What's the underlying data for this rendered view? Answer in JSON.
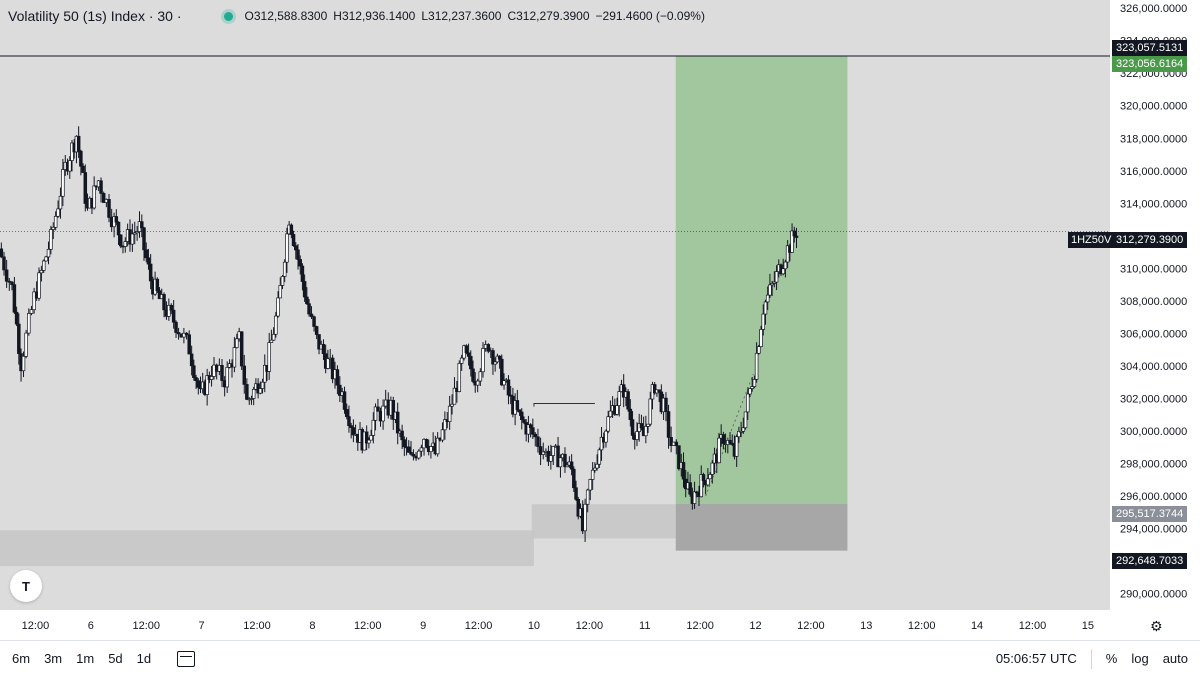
{
  "legend": {
    "title": "Volatility 50 (1s) Index · 30 ·",
    "open": "O312,588.8300",
    "high": "H312,936.1400",
    "low": "L312,237.3600",
    "close": "C312,279.3900",
    "change": "−291.4600 (−0.09%)"
  },
  "logo": "T",
  "price_tags": {
    "target_top": "323,057.5131",
    "target": "323,056.6164",
    "symbol": "1HZ50V",
    "current": "312,279.3900",
    "entry": "295,517.3744",
    "stop": "292,648.7033"
  },
  "toolbar": {
    "ranges": [
      "6m",
      "3m",
      "1m",
      "5d",
      "1d"
    ],
    "time": "05:06:57 UTC",
    "percent": "%",
    "log": "log",
    "auto": "auto"
  },
  "colors": {
    "background": "#dcdcdc",
    "up": "#ffffff",
    "down": "#131722",
    "profit_zone": "#8fbf8a",
    "loss_zone": "#9a9a9a",
    "target_label": "#4a9a4a",
    "entry_label": "#8a8f99"
  },
  "chart_data": {
    "type": "candlestick",
    "title": "Volatility 50 (1s) Index · 30",
    "x_ticks": [
      "12:00",
      "6",
      "12:00",
      "7",
      "12:00",
      "8",
      "12:00",
      "9",
      "12:00",
      "10",
      "12:00",
      "11",
      "12:00",
      "12",
      "12:00",
      "13",
      "12:00",
      "14",
      "12:00",
      "15"
    ],
    "y_ticks": [
      "290,000.0000",
      "292,000.0000",
      "294,000.0000",
      "296,000.0000",
      "298,000.0000",
      "300,000.0000",
      "302,000.0000",
      "304,000.0000",
      "306,000.0000",
      "308,000.0000",
      "310,000.0000",
      "312,000.0000",
      "314,000.0000",
      "316,000.0000",
      "318,000.0000",
      "320,000.0000",
      "322,000.0000",
      "324,000.0000",
      "326,000.0000"
    ],
    "ylim": [
      289000,
      326500
    ],
    "xlim": [
      5.18,
      15.2
    ],
    "current_price": 312279.39,
    "position": {
      "x_start": 11.28,
      "x_end": 12.83,
      "entry": 295517.3744,
      "target": 323056.6164,
      "stop": 292648.7033
    },
    "zones": [
      {
        "x_start": 5.18,
        "x_end": 10.0,
        "y_low": 291700,
        "y_high": 293900
      },
      {
        "x_start": 9.98,
        "x_end": 11.28,
        "y_low": 293400,
        "y_high": 295500
      }
    ],
    "horizontal_line": 323057.5131,
    "path": [
      [
        5.18,
        311200
      ],
      [
        5.3,
        308800
      ],
      [
        5.38,
        304200
      ],
      [
        5.5,
        308200
      ],
      [
        5.65,
        311800
      ],
      [
        5.78,
        316200
      ],
      [
        5.88,
        318200
      ],
      [
        5.98,
        313500
      ],
      [
        6.08,
        315400
      ],
      [
        6.2,
        313200
      ],
      [
        6.3,
        311600
      ],
      [
        6.45,
        312500
      ],
      [
        6.55,
        309300
      ],
      [
        6.65,
        307800
      ],
      [
        6.78,
        306600
      ],
      [
        6.9,
        305100
      ],
      [
        7.0,
        302100
      ],
      [
        7.1,
        303800
      ],
      [
        7.22,
        303200
      ],
      [
        7.35,
        305600
      ],
      [
        7.42,
        301800
      ],
      [
        7.5,
        302700
      ],
      [
        7.6,
        304100
      ],
      [
        7.7,
        307600
      ],
      [
        7.8,
        313200
      ],
      [
        7.88,
        310600
      ],
      [
        7.98,
        307200
      ],
      [
        8.05,
        305600
      ],
      [
        8.15,
        304200
      ],
      [
        8.28,
        302300
      ],
      [
        8.38,
        300100
      ],
      [
        8.48,
        299300
      ],
      [
        8.58,
        300900
      ],
      [
        8.72,
        301500
      ],
      [
        8.82,
        299200
      ],
      [
        8.9,
        298200
      ],
      [
        9.02,
        299700
      ],
      [
        9.12,
        298600
      ],
      [
        9.25,
        301200
      ],
      [
        9.38,
        304700
      ],
      [
        9.48,
        303300
      ],
      [
        9.6,
        305400
      ],
      [
        9.7,
        303800
      ],
      [
        9.8,
        301800
      ],
      [
        9.9,
        300600
      ],
      [
        10.0,
        299800
      ],
      [
        10.12,
        298600
      ],
      [
        10.25,
        298400
      ],
      [
        10.35,
        297600
      ],
      [
        10.45,
        293900
      ],
      [
        10.52,
        296800
      ],
      [
        10.62,
        299600
      ],
      [
        10.72,
        301400
      ],
      [
        10.82,
        302600
      ],
      [
        10.9,
        300200
      ],
      [
        11.0,
        299700
      ],
      [
        11.1,
        302900
      ],
      [
        11.18,
        301400
      ],
      [
        11.25,
        299200
      ],
      [
        11.32,
        298200
      ],
      [
        11.42,
        295800
      ],
      [
        11.52,
        296800
      ],
      [
        11.62,
        297800
      ],
      [
        11.72,
        299700
      ],
      [
        11.82,
        298600
      ],
      [
        11.92,
        301200
      ],
      [
        12.0,
        303800
      ],
      [
        12.08,
        307600
      ],
      [
        12.18,
        309200
      ],
      [
        12.28,
        310900
      ],
      [
        12.38,
        312300
      ]
    ]
  }
}
